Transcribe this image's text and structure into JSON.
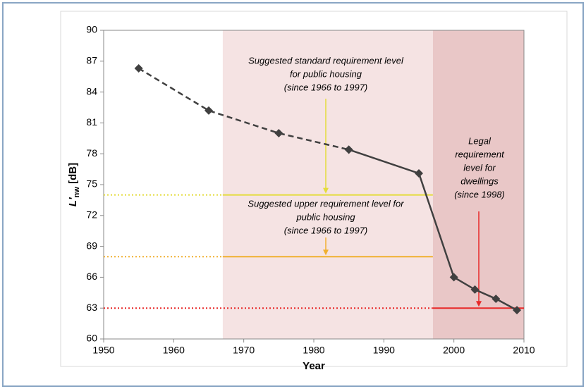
{
  "chart_data": {
    "type": "line",
    "xlabel": "Year",
    "ylabel": [
      "L'",
      "nw",
      " [dB]"
    ],
    "xlim": [
      1950,
      2010
    ],
    "xticks": [
      1950,
      1960,
      1970,
      1980,
      1990,
      2000,
      2010
    ],
    "ylim": [
      60,
      90
    ],
    "yticks": [
      60,
      63,
      66,
      69,
      72,
      75,
      78,
      81,
      84,
      87,
      90
    ],
    "line_color": "#404040",
    "series": [
      {
        "dashed": true,
        "x": [
          1955,
          1965,
          1975,
          1985
        ],
        "values": [
          86.3,
          82.2,
          80.0,
          78.4
        ]
      },
      {
        "dashed": false,
        "x": [
          1985,
          1995,
          2000,
          2003,
          2006,
          2009
        ],
        "values": [
          78.4,
          76.1,
          66.0,
          64.8,
          63.9,
          62.8
        ]
      }
    ],
    "regions": [
      {
        "x": [
          1967,
          1997
        ],
        "color": "#f5e3e3"
      },
      {
        "x": [
          1997,
          2010
        ],
        "color": "#e9c7c7"
      }
    ],
    "reference_lines": [
      {
        "y": 74,
        "x": [
          1967,
          1997
        ],
        "color": "#e4dc3c"
      },
      {
        "y": 68,
        "x": [
          1967,
          1997
        ],
        "color": "#f0b030"
      },
      {
        "y": 63,
        "x": [
          1997,
          2010
        ],
        "color": "#e82828"
      }
    ],
    "annotations": [
      {
        "lines": [
          "Suggested standard requirement level",
          "for public housing",
          "(since 1966 to 1997)"
        ]
      },
      {
        "lines": [
          "Suggested upper requirement level for",
          "public housing",
          "(since 1966 to 1997)"
        ]
      },
      {
        "lines": [
          "Legal",
          "requirement",
          "level for",
          "dwellings",
          "(since 1998)"
        ]
      }
    ]
  }
}
